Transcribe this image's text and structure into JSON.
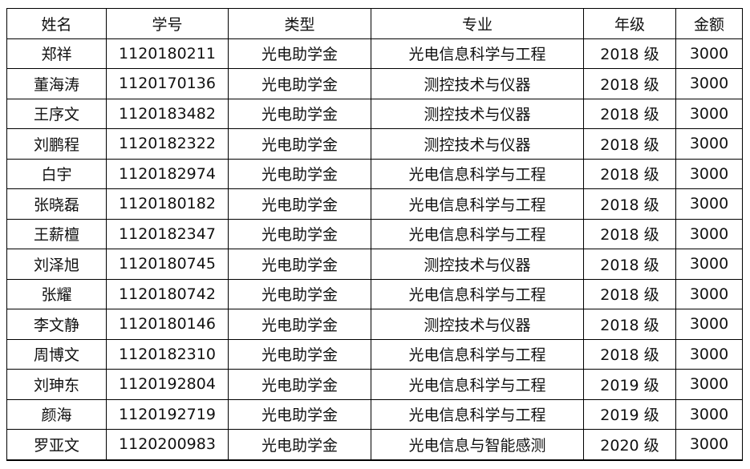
{
  "headers": [
    "姓名",
    "学号",
    "类型",
    "专业",
    "年级",
    "金额"
  ],
  "rows": [
    [
      "郑祥",
      "1120180211",
      "光电助学金",
      "光电信息科学与工程",
      "2018 级",
      "3000"
    ],
    [
      "董海涛",
      "1120170136",
      "光电助学金",
      "测控技术与仪器",
      "2018 级",
      "3000"
    ],
    [
      "王序文",
      "1120183482",
      "光电助学金",
      "测控技术与仪器",
      "2018 级",
      "3000"
    ],
    [
      "刘鹏程",
      "1120182322",
      "光电助学金",
      "测控技术与仪器",
      "2018 级",
      "3000"
    ],
    [
      "白宇",
      "1120182974",
      "光电助学金",
      "光电信息科学与工程",
      "2018 级",
      "3000"
    ],
    [
      "张晓磊",
      "1120180182",
      "光电助学金",
      "光电信息科学与工程",
      "2018 级",
      "3000"
    ],
    [
      "王薪檀",
      "1120182347",
      "光电助学金",
      "光电信息科学与工程",
      "2018 级",
      "3000"
    ],
    [
      "刘泽旭",
      "1120180745",
      "光电助学金",
      "测控技术与仪器",
      "2018 级",
      "3000"
    ],
    [
      "张耀",
      "1120180742",
      "光电助学金",
      "光电信息科学与工程",
      "2018 级",
      "3000"
    ],
    [
      "李文静",
      "1120180146",
      "光电助学金",
      "测控技术与仪器",
      "2018 级",
      "3000"
    ],
    [
      "周博文",
      "1120182310",
      "光电助学金",
      "光电信息科学与工程",
      "2018 级",
      "3000"
    ],
    [
      "刘珅东",
      "1120192804",
      "光电助学金",
      "光电信息科学与工程",
      "2019 级",
      "3000"
    ],
    [
      "颜海",
      "1120192719",
      "光电助学金",
      "光电信息科学与工程",
      "2019 级",
      "3000"
    ],
    [
      "罗亚文",
      "1120200983",
      "光电助学金",
      "光电信息与智能感测",
      "2020 级",
      "3000"
    ]
  ]
}
